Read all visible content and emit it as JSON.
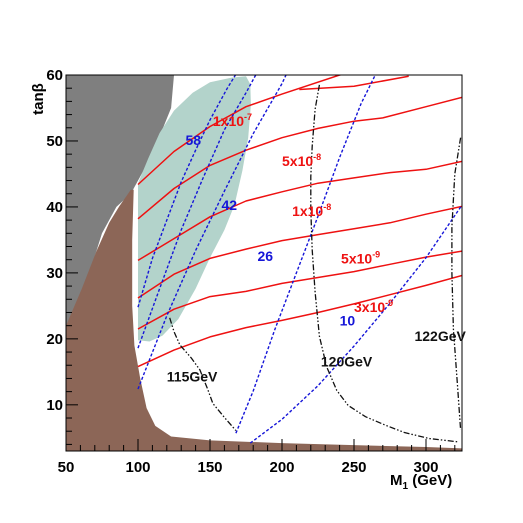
{
  "chart_data": {
    "type": "line",
    "x_axis": {
      "label_main": "M",
      "label_sub": "1",
      "label_unit": " (GeV)",
      "range": [
        50,
        325
      ],
      "ticks": [
        50,
        100,
        150,
        200,
        250,
        300
      ],
      "tick_labels": [
        "50",
        "100",
        "150",
        "200",
        "250",
        "300"
      ]
    },
    "y_axis": {
      "label": "tanβ",
      "range": [
        3,
        60
      ],
      "ticks": [
        10,
        20,
        30,
        40,
        50,
        60
      ],
      "tick_labels": [
        "10",
        "20",
        "30",
        "40",
        "50",
        "60"
      ]
    },
    "colors": {
      "excluded_dark": "#7f7f7f",
      "excluded_brown": "#8c6657",
      "allowed_teal": "#b3d3cb",
      "red_contour": "#ee1111",
      "blue_contour": "#1515d8",
      "black_contour": "#111111"
    },
    "regions": [
      {
        "name": "grey",
        "points": [
          [
            50,
            60
          ],
          [
            125,
            60
          ],
          [
            123,
            55
          ],
          [
            110,
            48
          ],
          [
            95,
            42
          ],
          [
            85,
            40
          ],
          [
            75,
            36
          ],
          [
            62,
            27
          ],
          [
            50,
            21
          ]
        ]
      },
      {
        "name": "brown",
        "points": [
          [
            50,
            3
          ],
          [
            50,
            22
          ],
          [
            61,
            27.6
          ],
          [
            71,
            33.2
          ],
          [
            80,
            37.6
          ],
          [
            87,
            40.1
          ],
          [
            95,
            42.6
          ],
          [
            97,
            42.6
          ],
          [
            96,
            35
          ],
          [
            96,
            25
          ],
          [
            97.5,
            19
          ],
          [
            101.5,
            14
          ],
          [
            106,
            9.5
          ],
          [
            112,
            6.8
          ],
          [
            123,
            5.2
          ],
          [
            150,
            4.6
          ],
          [
            200,
            4.2
          ],
          [
            250,
            3.9
          ],
          [
            300,
            3.6
          ],
          [
            325,
            3.4
          ],
          [
            325,
            3
          ]
        ]
      },
      {
        "name": "teal",
        "points": [
          [
            100,
            43.6
          ],
          [
            107,
            47.3
          ],
          [
            115,
            51.2
          ],
          [
            125,
            54.6
          ],
          [
            138,
            57.3
          ],
          [
            150,
            58.9
          ],
          [
            165,
            59.6
          ],
          [
            175,
            59.8
          ],
          [
            178,
            58.6
          ],
          [
            178.4,
            55.5
          ],
          [
            176.5,
            50.5
          ],
          [
            172.5,
            45.5
          ],
          [
            167,
            40.3
          ],
          [
            160,
            36.5
          ],
          [
            150,
            32.3
          ],
          [
            140,
            27.6
          ],
          [
            128,
            23
          ],
          [
            117,
            20.5
          ],
          [
            108,
            19.6
          ],
          [
            100,
            19.8
          ],
          [
            100,
            30
          ],
          [
            100,
            40
          ]
        ]
      }
    ],
    "series": [
      {
        "name": "1x10^-7",
        "kind": "red",
        "points": [
          [
            100,
            43.4
          ],
          [
            125,
            48.4
          ],
          [
            150,
            52.2
          ],
          [
            175,
            55.2
          ],
          [
            200,
            57.1
          ],
          [
            240,
            60
          ]
        ]
      },
      {
        "name": "1x10^-7 (upper branch)",
        "kind": "red",
        "points": [
          [
            240,
            60
          ],
          [
            270,
            61.2
          ]
        ]
      },
      {
        "name": "upper red (unlabeled)",
        "kind": "red",
        "points": [
          [
            212,
            57.8
          ],
          [
            250,
            58.3
          ],
          [
            288,
            59.8
          ]
        ]
      },
      {
        "name": "5x10^-8",
        "kind": "red",
        "points": [
          [
            100,
            38.2
          ],
          [
            125,
            42.8
          ],
          [
            150,
            46.3
          ],
          [
            175,
            48.6
          ],
          [
            200,
            50.5
          ],
          [
            225,
            51.9
          ],
          [
            250,
            53
          ],
          [
            270,
            53.5
          ],
          [
            300,
            55.2
          ],
          [
            325,
            56.6
          ]
        ]
      },
      {
        "name": "1x10^-8",
        "kind": "red",
        "points": [
          [
            100,
            31.9
          ],
          [
            125,
            35.2
          ],
          [
            150,
            38.5
          ],
          [
            175,
            40.9
          ],
          [
            200,
            42.3
          ],
          [
            225,
            43.6
          ],
          [
            250,
            44.4
          ],
          [
            275,
            45.2
          ],
          [
            300,
            45.7
          ],
          [
            325,
            46.9
          ]
        ]
      },
      {
        "name": "5x10^-9",
        "kind": "red",
        "points": [
          [
            100,
            26.2
          ],
          [
            125,
            29.8
          ],
          [
            150,
            32.2
          ],
          [
            175,
            33.6
          ],
          [
            200,
            34.9
          ],
          [
            225,
            35.8
          ],
          [
            250,
            36.7
          ],
          [
            275,
            37.6
          ],
          [
            300,
            38.9
          ],
          [
            325,
            40.1
          ]
        ]
      },
      {
        "name": "3x10^-9",
        "kind": "red",
        "points": [
          [
            100,
            21.5
          ],
          [
            125,
            24.5
          ],
          [
            150,
            26.4
          ],
          [
            175,
            27.2
          ],
          [
            200,
            28.4
          ],
          [
            225,
            29.3
          ],
          [
            250,
            30.2
          ],
          [
            275,
            31.3
          ],
          [
            300,
            32.4
          ],
          [
            325,
            33.3
          ]
        ]
      },
      {
        "name": "low red (unlabeled)",
        "kind": "red",
        "points": [
          [
            100,
            15.8
          ],
          [
            125,
            18.3
          ],
          [
            150,
            20.3
          ],
          [
            175,
            21.7
          ],
          [
            200,
            22.8
          ],
          [
            225,
            24
          ],
          [
            250,
            25.3
          ],
          [
            275,
            26.7
          ],
          [
            300,
            28.1
          ],
          [
            325,
            29.6
          ]
        ]
      },
      {
        "name": "58",
        "kind": "blue",
        "points": [
          [
            100,
            24.8
          ],
          [
            110,
            32.2
          ],
          [
            120,
            38
          ],
          [
            130,
            43.8
          ],
          [
            140,
            48.6
          ],
          [
            150,
            53.2
          ],
          [
            162,
            58
          ],
          [
            168,
            60.1
          ]
        ]
      },
      {
        "name": "42",
        "kind": "blue",
        "points": [
          [
            100,
            18.6
          ],
          [
            115,
            27.6
          ],
          [
            130,
            36.5
          ],
          [
            145,
            44.3
          ],
          [
            160,
            51.7
          ],
          [
            175,
            57.3
          ],
          [
            182,
            60.1
          ]
        ]
      },
      {
        "name": "26",
        "kind": "blue",
        "points": [
          [
            100,
            12.4
          ],
          [
            120,
            23.5
          ],
          [
            140,
            33.4
          ],
          [
            160,
            42.4
          ],
          [
            180,
            51.1
          ],
          [
            200,
            58.7
          ],
          [
            203,
            60.1
          ]
        ]
      },
      {
        "name": "blue between 26 and 10 (unlabeled)",
        "kind": "blue",
        "points": [
          [
            168,
            5.7
          ],
          [
            180,
            12.1
          ],
          [
            195,
            21.4
          ],
          [
            210,
            30
          ],
          [
            225,
            38.6
          ],
          [
            240,
            47.5
          ],
          [
            255,
            55.7
          ],
          [
            265,
            60.1
          ]
        ]
      },
      {
        "name": "10",
        "kind": "blue",
        "points": [
          [
            178,
            4.2
          ],
          [
            200,
            7.8
          ],
          [
            225,
            12.9
          ],
          [
            250,
            18.9
          ],
          [
            275,
            25.4
          ],
          [
            300,
            32.3
          ],
          [
            325,
            40.3
          ]
        ]
      },
      {
        "name": "115GeV",
        "kind": "black",
        "points": [
          [
            122,
            23.2
          ],
          [
            125,
            21.1
          ],
          [
            129,
            19.1
          ],
          [
            137,
            17.1
          ],
          [
            143,
            15.3
          ],
          [
            148,
            12.6
          ],
          [
            152,
            10.2
          ],
          [
            160,
            8.1
          ],
          [
            168,
            6.1
          ]
        ]
      },
      {
        "name": "120GeV",
        "kind": "black",
        "points": [
          [
            226,
            58.5
          ],
          [
            223,
            54.8
          ],
          [
            221,
            49.2
          ],
          [
            220,
            44.6
          ],
          [
            220,
            39.6
          ],
          [
            221,
            33.5
          ],
          [
            223,
            27.1
          ],
          [
            226,
            20.4
          ],
          [
            231,
            15.8
          ],
          [
            238,
            12.2
          ],
          [
            246,
            9.9
          ],
          [
            258,
            8.2
          ],
          [
            272,
            6.9
          ],
          [
            285,
            5.8
          ],
          [
            302,
            4.9
          ],
          [
            322,
            4.4
          ]
        ]
      },
      {
        "name": "122GeV",
        "kind": "black",
        "points": [
          [
            324,
            50.5
          ],
          [
            320,
            45
          ],
          [
            318,
            37
          ],
          [
            318,
            30
          ],
          [
            319,
            21.5
          ],
          [
            322,
            12.5
          ],
          [
            324,
            6.2
          ]
        ]
      }
    ],
    "annotations": [
      {
        "text": "1x10",
        "sup": "-7",
        "color": "red",
        "x": 152,
        "y": 52.3
      },
      {
        "text": "5x10",
        "sup": "-8",
        "color": "red",
        "x": 200,
        "y": 46.2
      },
      {
        "text": "1x10",
        "sup": "-8",
        "color": "red",
        "x": 207,
        "y": 38.6
      },
      {
        "text": "5x10",
        "sup": "-9",
        "color": "red",
        "x": 241,
        "y": 31.4
      },
      {
        "text": "3x10",
        "sup": "-9",
        "color": "red",
        "x": 250,
        "y": 24.1
      },
      {
        "text": "58",
        "sup": "",
        "color": "blue",
        "x": 133,
        "y": 49.4
      },
      {
        "text": "42",
        "sup": "",
        "color": "blue",
        "x": 158,
        "y": 39.5
      },
      {
        "text": "26",
        "sup": "",
        "color": "blue",
        "x": 183,
        "y": 31.8
      },
      {
        "text": "10",
        "sup": "",
        "color": "blue",
        "x": 240,
        "y": 22
      },
      {
        "text": "115GeV",
        "sup": "",
        "color": "black",
        "x": 120,
        "y": 13.5
      },
      {
        "text": "120GeV",
        "sup": "",
        "color": "black",
        "x": 227,
        "y": 15.8
      },
      {
        "text": "122GeV",
        "sup": "",
        "color": "black",
        "x": 292,
        "y": 19.7
      }
    ]
  }
}
